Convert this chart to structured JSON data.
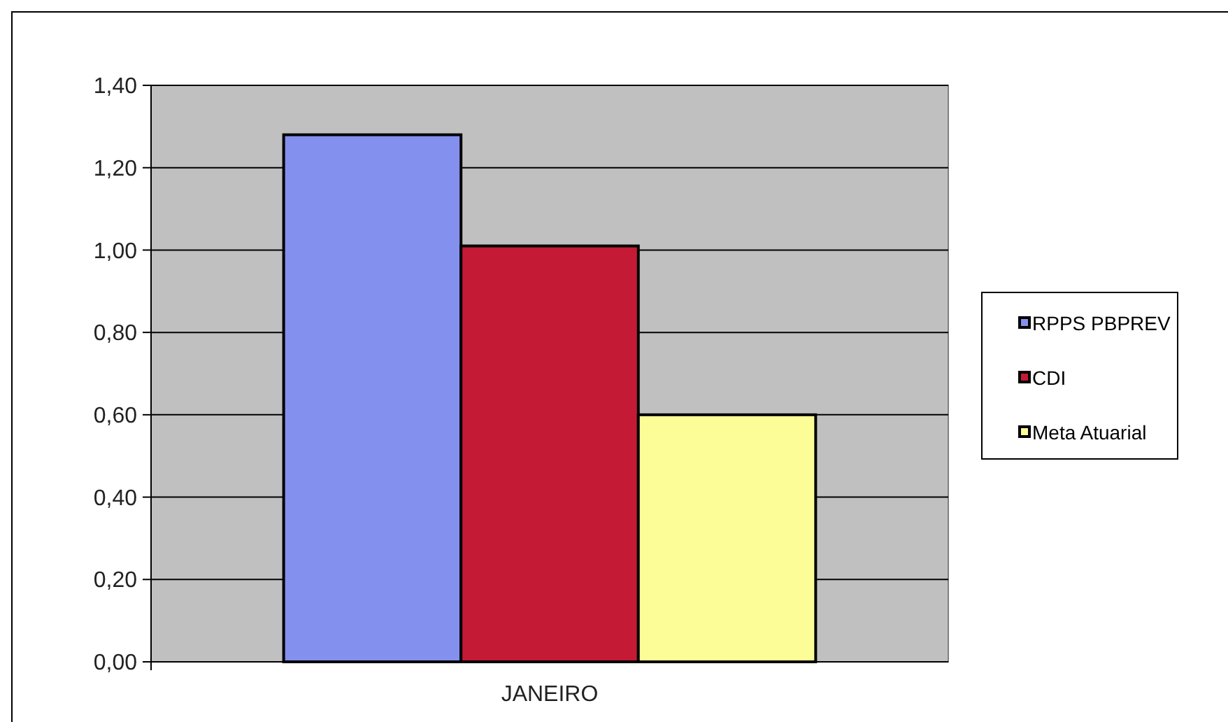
{
  "chart_data": {
    "type": "bar",
    "categories": [
      "JANEIRO"
    ],
    "series": [
      {
        "name": "RPPS PBPREV",
        "color": "#8490ee",
        "values": [
          1.28
        ]
      },
      {
        "name": "CDI",
        "color": "#c41a35",
        "values": [
          1.01
        ]
      },
      {
        "name": "Meta Atuarial",
        "color": "#fdfd98",
        "values": [
          0.6
        ]
      }
    ],
    "ylim": [
      0,
      1.4
    ],
    "yticks": [
      {
        "value": 0,
        "label": "0,00"
      },
      {
        "value": 0.2,
        "label": "0,20"
      },
      {
        "value": 0.4,
        "label": "0,40"
      },
      {
        "value": 0.6,
        "label": "0,60"
      },
      {
        "value": 0.8,
        "label": "0,80"
      },
      {
        "value": 1,
        "label": "1,00"
      },
      {
        "value": 1.2,
        "label": "1,20"
      },
      {
        "value": 1.4,
        "label": "1,40"
      }
    ],
    "grid": "y",
    "legend": "right"
  }
}
